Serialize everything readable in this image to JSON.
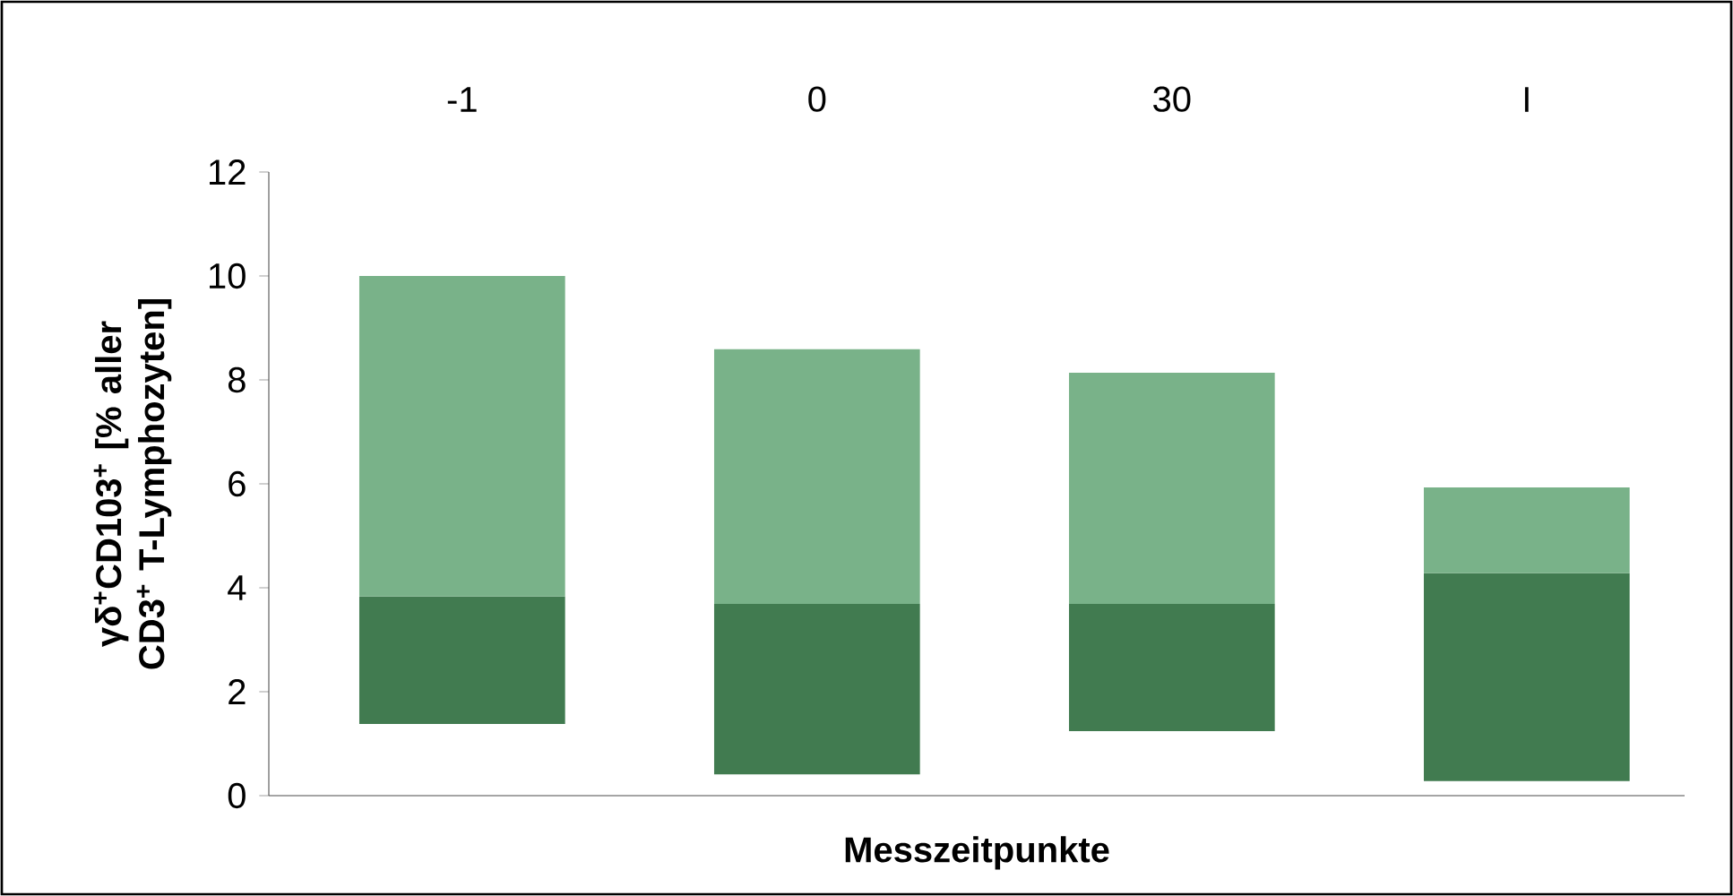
{
  "chart_data": {
    "type": "bar",
    "xlabel": "Messzeitpunkte",
    "ylabel": "γδ$^{+}$CD103$^{+}$ [% aller CD3$^{+}$ T-Lymphozyten]",
    "categories": [
      "-1",
      "0",
      "30",
      "I"
    ],
    "series": [
      {
        "color": "#417b50",
        "base": [
          1.38,
          0.41,
          1.24,
          0.28
        ],
        "values": [
          2.45,
          3.28,
          2.45,
          4.0
        ]
      },
      {
        "color": "#79b289",
        "base": [
          3.83,
          3.69,
          3.69,
          4.28
        ],
        "values": [
          6.17,
          4.9,
          4.45,
          1.65
        ]
      }
    ],
    "ylim": [
      0,
      12
    ],
    "yticks": [
      0,
      2,
      4,
      6,
      8,
      10,
      12
    ],
    "grid": false
  }
}
